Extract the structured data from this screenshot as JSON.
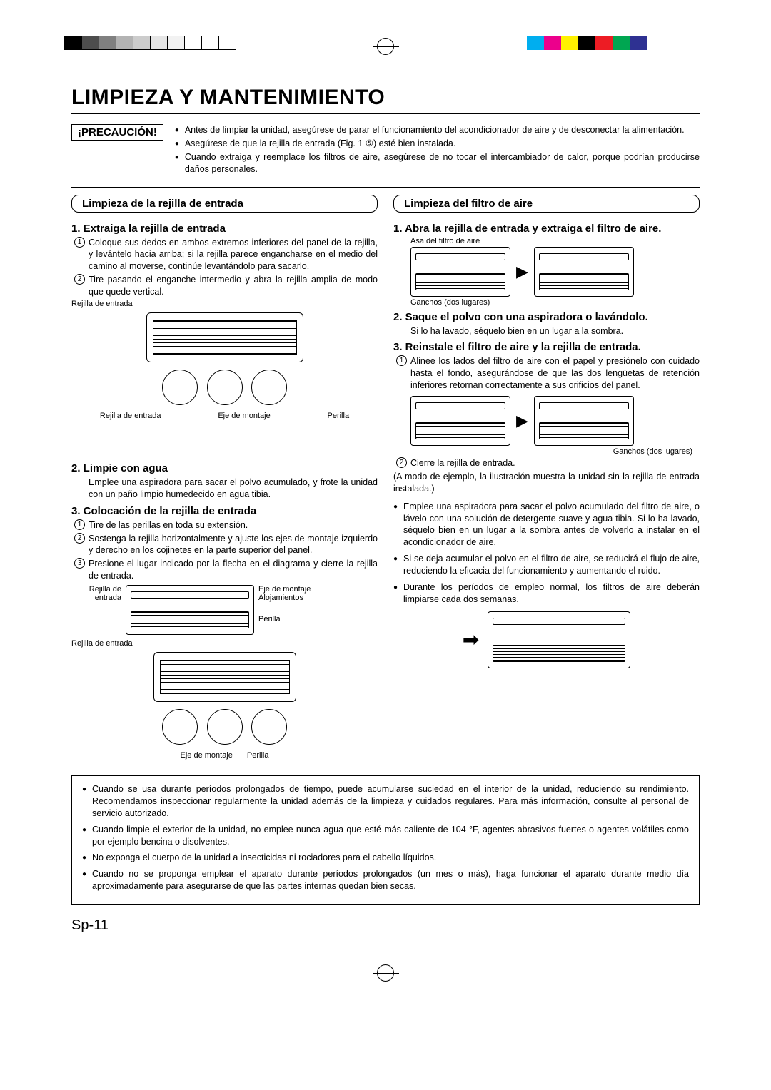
{
  "colorbar_left": [
    "#000000",
    "#4d4d4d",
    "#808080",
    "#b3b3b3",
    "#cccccc",
    "#e6e6e6",
    "#f2f2f2",
    "#ffffff",
    "#ffffff",
    "#ffffff"
  ],
  "colorbar_right": [
    "#00aeef",
    "#ec008c",
    "#fff200",
    "#000000",
    "#ed1c24",
    "#00a651",
    "#2e3192",
    "#ffffff"
  ],
  "title": "LIMPIEZA Y MANTENIMIENTO",
  "caution_label": "¡PRECAUCIÓN!",
  "caution_items": [
    "Antes de limpiar la unidad, asegúrese de parar el funcionamiento del acondicionador de aire y de desconectar la alimentación.",
    "Asegúrese de que la rejilla de entrada (Fig. 1 ⑤) esté bien instalada.",
    "Cuando extraiga y reemplace los filtros de aire, asegúrese de no tocar el intercambiador de calor, porque podrían producirse daños personales."
  ],
  "left": {
    "header": "Limpieza de la rejilla de entrada",
    "s1_title": "1. Extraiga la rejilla de entrada",
    "s1_items": [
      "Coloque sus dedos en ambos extremos inferiores del panel de la rejilla, y levántelo hacia arriba; si la rejilla parece engancharse en el medio del camino al moverse, continúe levantándolo para sacarlo.",
      "Tire pasando el enganche intermedio y abra la rejilla amplia de modo que quede vertical."
    ],
    "fig1_label_top": "Rejilla de entrada",
    "fig1_label_a": "Rejilla de entrada",
    "fig1_label_b": "Eje de montaje",
    "fig1_label_c": "Perilla",
    "s2_title": "2. Limpie con agua",
    "s2_text": "Emplee una aspiradora para sacar el polvo acumulado, y frote la unidad con un paño limpio humedecido en agua tibia.",
    "s3_title": "3. Colocación de la rejilla de entrada",
    "s3_items": [
      "Tire de las perillas en toda su extensión.",
      "Sostenga la rejilla horizontalmente y ajuste los ejes de montaje izquierdo y derecho en los cojinetes en la parte superior del panel.",
      "Presione el lugar indicado por la flecha en el diagrama y cierre la rejilla de entrada."
    ],
    "fig2_labels": {
      "a": "Eje de montaje",
      "b": "Alojamientos",
      "c": "Rejilla de entrada",
      "d": "Perilla",
      "e": "Rejilla de entrada",
      "f": "Eje de montaje",
      "g": "Perilla"
    }
  },
  "right": {
    "header": "Limpieza del filtro de aire",
    "s1_title": "1. Abra la rejilla de entrada y extraiga el filtro de aire.",
    "s1_label_top": "Asa del filtro de aire",
    "s1_label_bottom": "Ganchos (dos lugares)",
    "s2_title": "2. Saque el polvo con una aspiradora o lavándolo.",
    "s2_text": "Si lo ha lavado, séquelo bien en un lugar a la sombra.",
    "s3_title": "3. Reinstale el filtro de aire y la rejilla de entrada.",
    "s3_item1": "Alinee los lados del filtro de aire con el papel y presiónelo con cuidado hasta el fondo, asegurándose de que las dos lengüetas de retención inferiores retornan correctamente a sus orificios del panel.",
    "s3_label_bottom": "Ganchos (dos lugares)",
    "s3_item2": "Cierre la rejilla de entrada.",
    "note": "(A modo de ejemplo, la ilustración muestra la unidad sin la rejilla de entrada instalada.)",
    "bullets": [
      "Emplee una aspiradora para sacar el polvo acumulado del filtro de aire, o lávelo con una solución de detergente suave y agua tibia. Si lo ha lavado, séquelo bien en un lugar a la sombra antes de volverlo a instalar en el acondicionador de aire.",
      "Si se deja acumular el polvo en el filtro de aire, se reducirá el flujo de aire, reduciendo la eficacia del funcionamiento y aumentando el ruido.",
      "Durante los períodos de empleo normal, los filtros de aire deberán limpiarse cada dos semanas."
    ]
  },
  "bottom_box": [
    "Cuando se usa durante períodos prolongados de tiempo, puede acumularse suciedad en el interior de la unidad, reduciendo su rendimiento. Recomendamos inspeccionar regularmente la unidad además de la limpieza y cuidados regulares. Para más información, consulte al personal de servicio autorizado.",
    "Cuando limpie el exterior de la unidad, no emplee nunca agua que esté más caliente de 104 °F, agentes abrasivos fuertes o agentes volátiles como por ejemplo bencina o disolventes.",
    "No exponga el cuerpo de la unidad a insecticidas ni rociadores para el cabello líquidos.",
    "Cuando no se proponga emplear el aparato durante períodos prolongados (un mes o más), haga funcionar el aparato durante medio día aproximadamente para asegurarse de que las partes internas quedan bien secas."
  ],
  "page_number": "Sp-11"
}
